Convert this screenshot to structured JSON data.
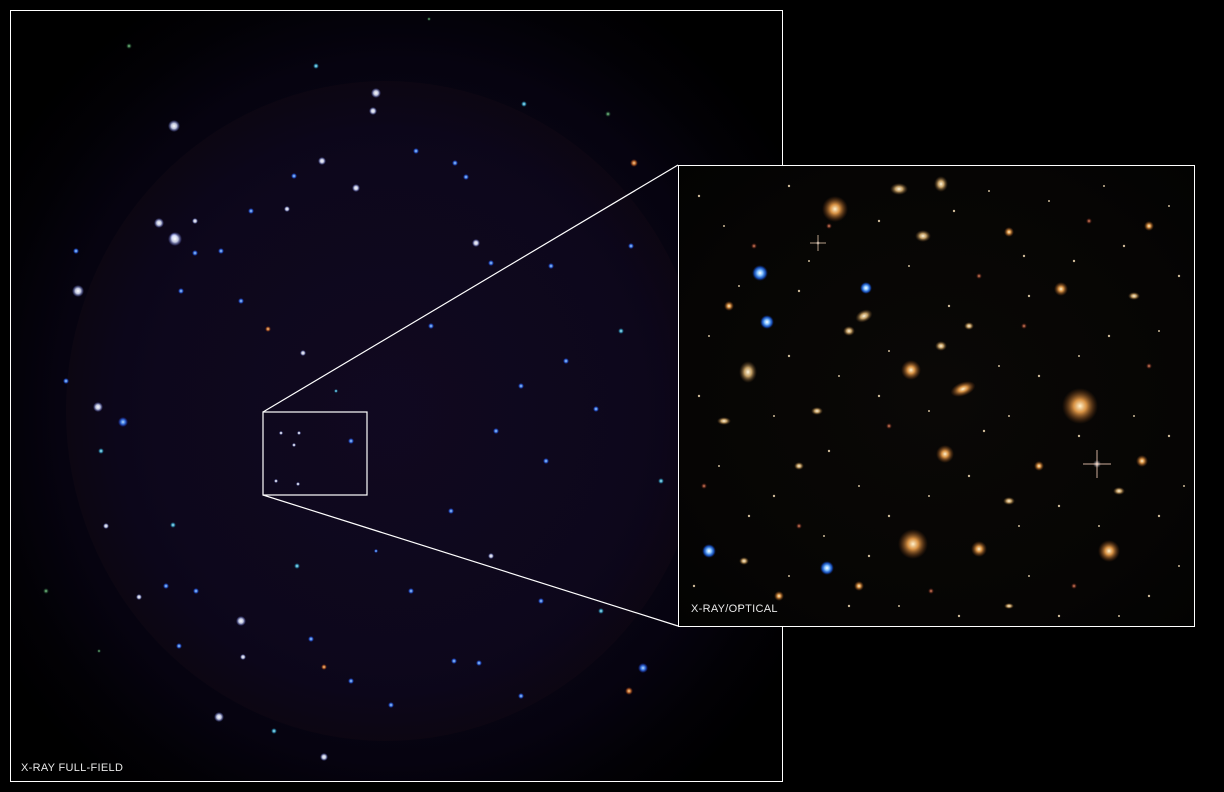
{
  "panels": {
    "full_field": {
      "label": "X-RAY FULL-FIELD"
    },
    "zoom": {
      "label": "X-RAY/OPTICAL"
    }
  },
  "colors": {
    "border": "#ffffff",
    "background": "#000000",
    "xray_blue": "#4f8dff",
    "xray_white": "#e8ecff",
    "galaxy_orange": "#d98a3a",
    "galaxy_gold": "#e0b060"
  }
}
